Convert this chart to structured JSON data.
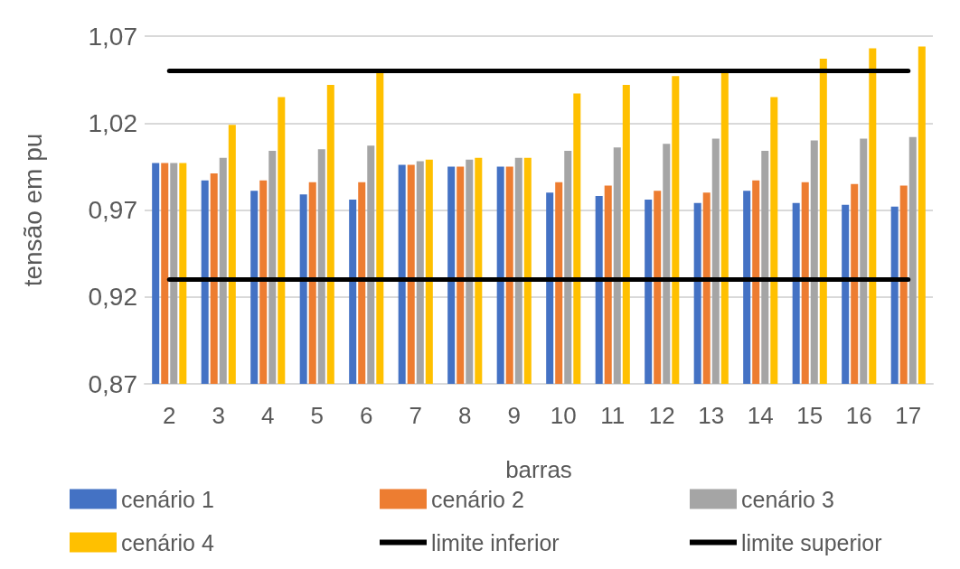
{
  "chart_data": {
    "type": "bar",
    "xlabel": "barras",
    "ylabel": "tensão em pu",
    "categories": [
      "2",
      "3",
      "4",
      "5",
      "6",
      "7",
      "8",
      "9",
      "10",
      "11",
      "12",
      "13",
      "14",
      "15",
      "16",
      "17"
    ],
    "series": [
      {
        "name": "cenário 1",
        "color": "#4472c4",
        "values": [
          0.997,
          0.987,
          0.981,
          0.979,
          0.976,
          0.996,
          0.995,
          0.995,
          0.98,
          0.978,
          0.976,
          0.974,
          0.981,
          0.974,
          0.973,
          0.972
        ]
      },
      {
        "name": "cenário 2",
        "color": "#ed7d31",
        "values": [
          0.997,
          0.991,
          0.987,
          0.986,
          0.986,
          0.996,
          0.995,
          0.995,
          0.986,
          0.984,
          0.981,
          0.98,
          0.987,
          0.986,
          0.985,
          0.984
        ]
      },
      {
        "name": "cenário 3",
        "color": "#a5a5a5",
        "values": [
          0.997,
          1.0,
          1.004,
          1.005,
          1.007,
          0.998,
          0.999,
          1.0,
          1.004,
          1.006,
          1.008,
          1.011,
          1.004,
          1.01,
          1.011,
          1.012
        ]
      },
      {
        "name": "cenário 4",
        "color": "#ffc000",
        "values": [
          0.997,
          1.019,
          1.035,
          1.042,
          1.049,
          0.999,
          1.0,
          1.0,
          1.037,
          1.042,
          1.047,
          1.049,
          1.035,
          1.057,
          1.063,
          1.064
        ]
      },
      {
        "name": "limite inferior",
        "type": "line",
        "color": "#000000",
        "values": [
          0.93,
          0.93,
          0.93,
          0.93,
          0.93,
          0.93,
          0.93,
          0.93,
          0.93,
          0.93,
          0.93,
          0.93,
          0.93,
          0.93,
          0.93,
          0.93
        ]
      },
      {
        "name": "limite superior",
        "type": "line",
        "color": "#000000",
        "values": [
          1.05,
          1.05,
          1.05,
          1.05,
          1.05,
          1.05,
          1.05,
          1.05,
          1.05,
          1.05,
          1.05,
          1.05,
          1.05,
          1.05,
          1.05,
          1.05
        ]
      }
    ],
    "ylim": [
      0.87,
      1.07
    ],
    "yticks": [
      {
        "value": 0.87,
        "label": "0,87"
      },
      {
        "value": 0.92,
        "label": "0,92"
      },
      {
        "value": 0.97,
        "label": "0,97"
      },
      {
        "value": 1.02,
        "label": "1,02"
      },
      {
        "value": 1.07,
        "label": "1,07"
      }
    ],
    "grid": "y",
    "legend": "bottom",
    "marker": "none"
  }
}
